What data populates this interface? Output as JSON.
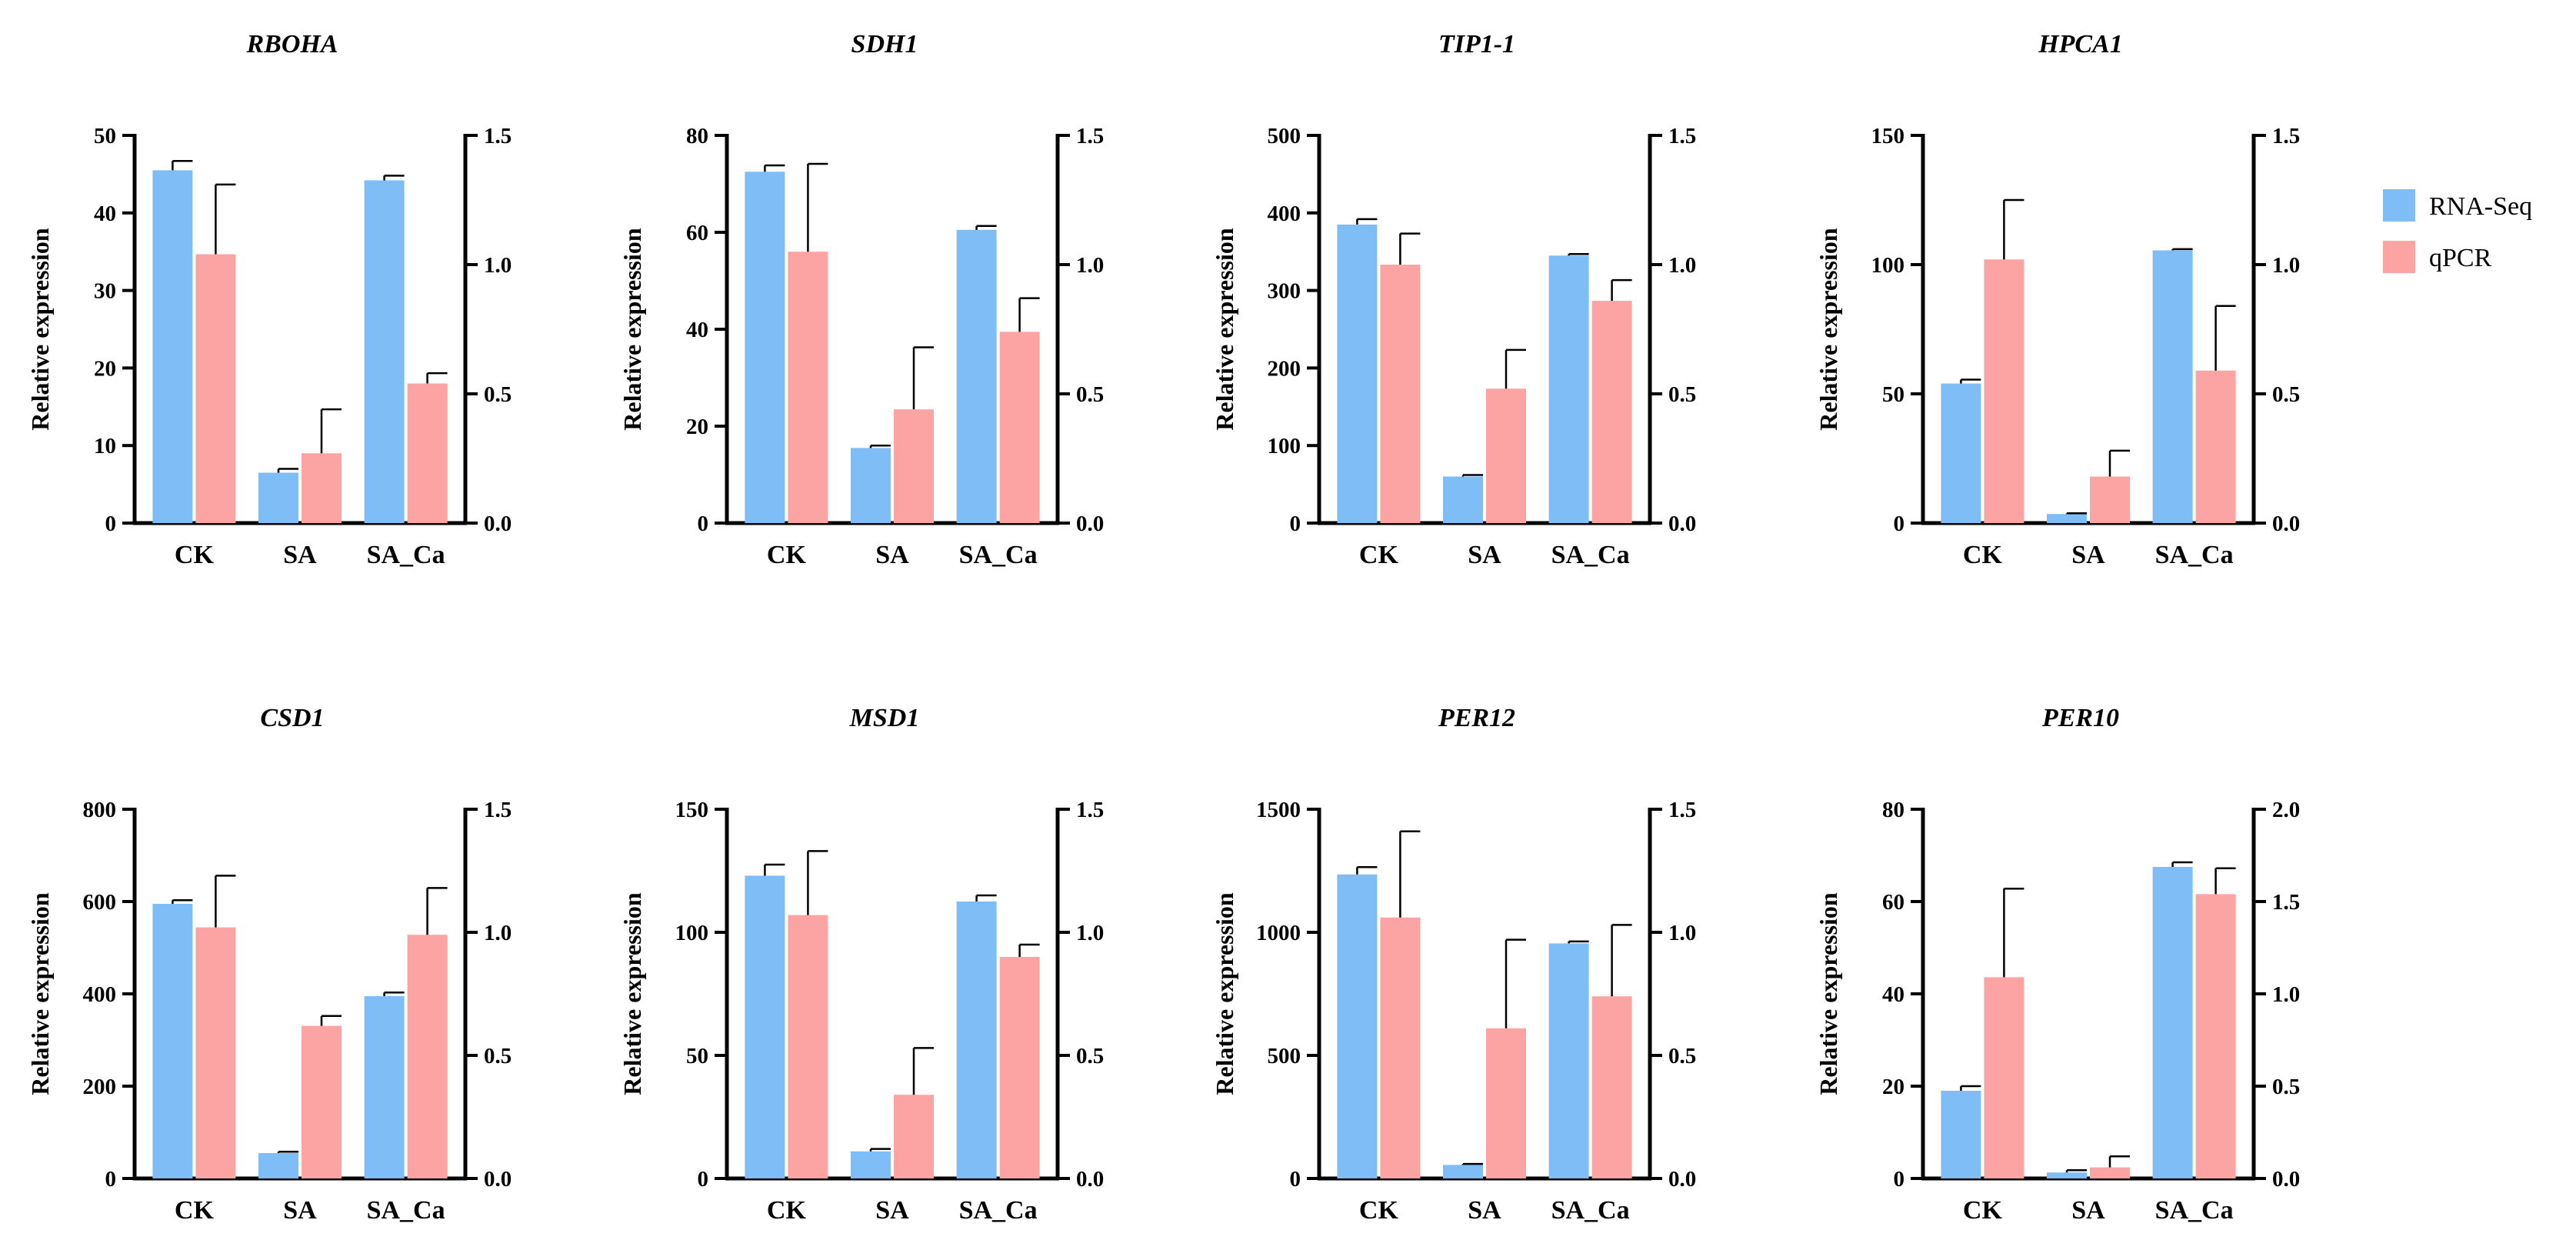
{
  "colors": {
    "rna_seq": "#7fbdf7",
    "qpcr": "#fca4a4",
    "axis": "#000000"
  },
  "legend": {
    "position": "right",
    "items": [
      {
        "name": "RNA-Seq",
        "color": "#7fbdf7"
      },
      {
        "name": "qPCR",
        "color": "#fca4a4"
      }
    ]
  },
  "chart_data": [
    {
      "type": "bar",
      "title": "RBOHA",
      "ylabel": "Relative expression",
      "categories": [
        "CK",
        "SA",
        "SA_Ca"
      ],
      "left_axis": {
        "ylim": [
          0,
          50
        ],
        "ticks": [
          "0",
          "10",
          "20",
          "30",
          "40",
          "50"
        ]
      },
      "right_axis": {
        "ylim": [
          0,
          1.5
        ],
        "ticks": [
          "0.0",
          "0.5",
          "1.0",
          "1.5"
        ]
      },
      "series": [
        {
          "name": "RNA-Seq",
          "axis": "left",
          "values": [
            45.5,
            6.5,
            44.2
          ],
          "errors": [
            1.2,
            0.5,
            0.6
          ]
        },
        {
          "name": "qPCR",
          "axis": "right",
          "values": [
            1.04,
            0.27,
            0.54
          ],
          "errors": [
            0.27,
            0.17,
            0.04
          ]
        }
      ]
    },
    {
      "type": "bar",
      "title": "SDH1",
      "ylabel": "Relative expression",
      "categories": [
        "CK",
        "SA",
        "SA_Ca"
      ],
      "left_axis": {
        "ylim": [
          0,
          80
        ],
        "ticks": [
          "0",
          "20",
          "40",
          "60",
          "80"
        ]
      },
      "right_axis": {
        "ylim": [
          0,
          1.5
        ],
        "ticks": [
          "0.0",
          "0.5",
          "1.0",
          "1.5"
        ]
      },
      "series": [
        {
          "name": "RNA-Seq",
          "axis": "left",
          "values": [
            72.5,
            15.5,
            60.5
          ],
          "errors": [
            1.3,
            0.5,
            0.8
          ]
        },
        {
          "name": "qPCR",
          "axis": "right",
          "values": [
            1.05,
            0.44,
            0.74
          ],
          "errors": [
            0.34,
            0.24,
            0.13
          ]
        }
      ]
    },
    {
      "type": "bar",
      "title": "TIP1-1",
      "ylabel": "Relative expression",
      "categories": [
        "CK",
        "SA",
        "SA_Ca"
      ],
      "left_axis": {
        "ylim": [
          0,
          500
        ],
        "ticks": [
          "0",
          "100",
          "200",
          "300",
          "400",
          "500"
        ]
      },
      "right_axis": {
        "ylim": [
          0,
          1.5
        ],
        "ticks": [
          "0.0",
          "0.5",
          "1.0",
          "1.5"
        ]
      },
      "series": [
        {
          "name": "RNA-Seq",
          "axis": "left",
          "values": [
            385,
            60,
            345
          ],
          "errors": [
            7,
            2,
            2
          ]
        },
        {
          "name": "qPCR",
          "axis": "right",
          "values": [
            1.0,
            0.52,
            0.86
          ],
          "errors": [
            0.12,
            0.15,
            0.08
          ]
        }
      ]
    },
    {
      "type": "bar",
      "title": "HPCA1",
      "ylabel": "Relative expression",
      "categories": [
        "CK",
        "SA",
        "SA_Ca"
      ],
      "left_axis": {
        "ylim": [
          0,
          150
        ],
        "ticks": [
          "0",
          "50",
          "100",
          "150"
        ]
      },
      "right_axis": {
        "ylim": [
          0,
          1.5
        ],
        "ticks": [
          "0.0",
          "0.5",
          "1.0",
          "1.5"
        ]
      },
      "series": [
        {
          "name": "RNA-Seq",
          "axis": "left",
          "values": [
            54,
            3.5,
            105.5
          ],
          "errors": [
            1.5,
            0.3,
            0.5
          ]
        },
        {
          "name": "qPCR",
          "axis": "right",
          "values": [
            1.02,
            0.18,
            0.59
          ],
          "errors": [
            0.23,
            0.1,
            0.25
          ]
        }
      ]
    },
    {
      "type": "bar",
      "title": "CSD1",
      "ylabel": "Relative expression",
      "categories": [
        "CK",
        "SA",
        "SA_Ca"
      ],
      "left_axis": {
        "ylim": [
          0,
          800
        ],
        "ticks": [
          "0",
          "200",
          "400",
          "600",
          "800"
        ]
      },
      "right_axis": {
        "ylim": [
          0,
          1.5
        ],
        "ticks": [
          "0.0",
          "0.5",
          "1.0",
          "1.5"
        ]
      },
      "series": [
        {
          "name": "RNA-Seq",
          "axis": "left",
          "values": [
            595,
            55,
            395
          ],
          "errors": [
            8,
            3,
            8
          ]
        },
        {
          "name": "qPCR",
          "axis": "right",
          "values": [
            1.02,
            0.62,
            0.99
          ],
          "errors": [
            0.21,
            0.04,
            0.19
          ]
        }
      ]
    },
    {
      "type": "bar",
      "title": "MSD1",
      "ylabel": "Relative expression",
      "categories": [
        "CK",
        "SA",
        "SA_Ca"
      ],
      "left_axis": {
        "ylim": [
          0,
          150
        ],
        "ticks": [
          "0",
          "50",
          "100",
          "150"
        ]
      },
      "right_axis": {
        "ylim": [
          0,
          1.5
        ],
        "ticks": [
          "0.0",
          "0.5",
          "1.0",
          "1.5"
        ]
      },
      "series": [
        {
          "name": "RNA-Seq",
          "axis": "left",
          "values": [
            123,
            11,
            112.5
          ],
          "errors": [
            4.5,
            1,
            2.5
          ]
        },
        {
          "name": "qPCR",
          "axis": "right",
          "values": [
            1.07,
            0.34,
            0.9
          ],
          "errors": [
            0.26,
            0.19,
            0.05
          ]
        }
      ]
    },
    {
      "type": "bar",
      "title": "PER12",
      "ylabel": "Relative expression",
      "categories": [
        "CK",
        "SA",
        "SA_Ca"
      ],
      "left_axis": {
        "ylim": [
          0,
          1500
        ],
        "ticks": [
          "0",
          "500",
          "1000",
          "1500"
        ]
      },
      "right_axis": {
        "ylim": [
          0,
          1.5
        ],
        "ticks": [
          "0.0",
          "0.5",
          "1.0",
          "1.5"
        ]
      },
      "series": [
        {
          "name": "RNA-Seq",
          "axis": "left",
          "values": [
            1235,
            55,
            955
          ],
          "errors": [
            30,
            4,
            8
          ]
        },
        {
          "name": "qPCR",
          "axis": "right",
          "values": [
            1.06,
            0.61,
            0.74
          ],
          "errors": [
            0.35,
            0.36,
            0.29
          ]
        }
      ]
    },
    {
      "type": "bar",
      "title": "PER10",
      "ylabel": "Relative expression",
      "categories": [
        "CK",
        "SA",
        "SA_Ca"
      ],
      "left_axis": {
        "ylim": [
          0,
          80
        ],
        "ticks": [
          "0",
          "20",
          "40",
          "60",
          "80"
        ]
      },
      "right_axis": {
        "ylim": [
          0,
          2.0
        ],
        "ticks": [
          "0.0",
          "0.5",
          "1.0",
          "1.5",
          "2.0"
        ]
      },
      "series": [
        {
          "name": "RNA-Seq",
          "axis": "left",
          "values": [
            19,
            1.3,
            67.5
          ],
          "errors": [
            1,
            0.5,
            1
          ]
        },
        {
          "name": "qPCR",
          "axis": "right",
          "values": [
            1.09,
            0.06,
            1.54
          ],
          "errors": [
            0.48,
            0.06,
            0.14
          ]
        }
      ]
    }
  ]
}
